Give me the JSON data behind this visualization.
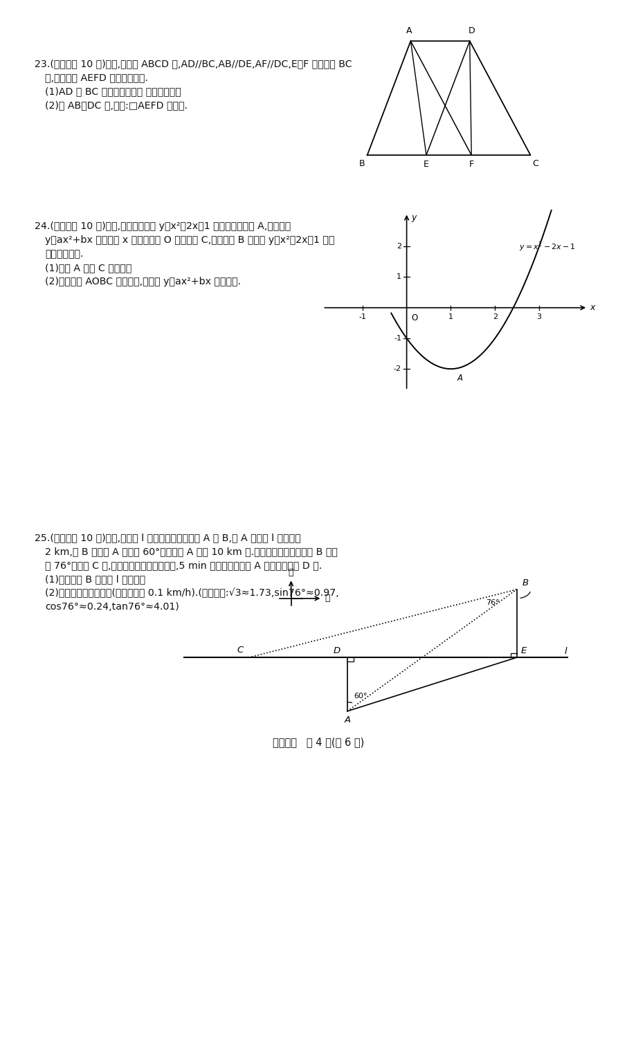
{
  "q23_title": "23.(本题满分 10 分)如图,在梯形 ABCD 中,AD//BC,AB//DE,AF//DC,E、F 两点在边 BC",
  "q23_line2": "上,且四边形 AEFD 是平行四边形.",
  "q23_line3": "(1)AD 与 BC 有何等量关系？ 请说明理由；",
  "q23_line4": "(2)当 AB＝DC 时,求证:□AEFD 是矩形.",
  "q24_title": "24.(本题满分 10 分)如图,已知二次函数 y＝x²－2x－1 的图象的顶点为 A,二次函数",
  "q24_line2": "y＝ax²+bx 的图象与 x 轴交于原点 O 及另一点 C,它的顶点 B 在函数 y＝x²－2x－1 的图",
  "q24_line3": "象的对称轴上.",
  "q24_line4": "(1)求点 A 与点 C 的坐标；",
  "q24_line5": "(2)当四边形 AOBC 为菱形时,求函数 y＝ax²+bx 的关系式.",
  "q25_title": "25.(本题满分 10 分)如图,在航线 l 的两侧分别有观测点 A 和 B,点 A 到航线 l 的距离为",
  "q25_line2": "2 km,点 B 位于点 A 北偏东 60°方向且与 A 相距 10 km 处.现有一艘轮船从位于点 B 南偏",
  "q25_line3": "西 76°方向的 C 处,正沿该航线自西向东航行,5 min 后该轮船行至点 A 的正北方向的 D 处.",
  "q25_line4": "(1)求观测点 B 到航线 l 的距离；",
  "q25_line5": "(2)求该轮船航行的速度(结果精确到 0.1 km/h).(参考数据:√3≈1.73,sin76°≈0.97,",
  "q25_line6": "cos76°≈0.24,tan76°≈4.01)",
  "page_label": "数学试卷   第 4 页(共 6 页)"
}
